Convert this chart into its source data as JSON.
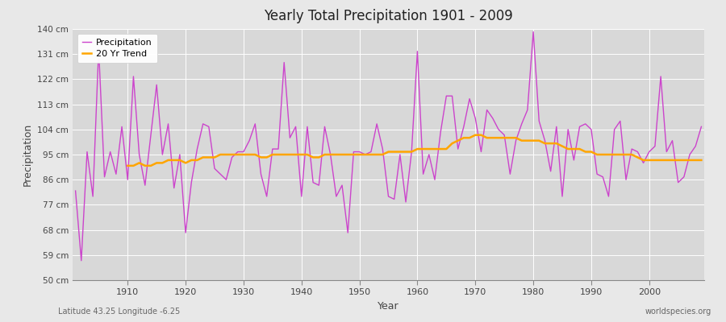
{
  "title": "Yearly Total Precipitation 1901 - 2009",
  "xlabel": "Year",
  "ylabel": "Precipitation",
  "lat_lon_label": "Latitude 43.25 Longitude -6.25",
  "watermark": "worldspecies.org",
  "precipitation_color": "#CC44CC",
  "trend_color": "#FFA500",
  "fig_bg_color": "#E8E8E8",
  "plot_bg_color": "#D8D8D8",
  "grid_color": "#FFFFFF",
  "ylim": [
    50,
    140
  ],
  "yticks": [
    50,
    59,
    68,
    77,
    86,
    95,
    104,
    113,
    122,
    131,
    140
  ],
  "ytick_labels": [
    "50 cm",
    "59 cm",
    "68 cm",
    "77 cm",
    "86 cm",
    "95 cm",
    "104 cm",
    "113 cm",
    "122 cm",
    "131 cm",
    "140 cm"
  ],
  "years": [
    1901,
    1902,
    1903,
    1904,
    1905,
    1906,
    1907,
    1908,
    1909,
    1910,
    1911,
    1912,
    1913,
    1914,
    1915,
    1916,
    1917,
    1918,
    1919,
    1920,
    1921,
    1922,
    1923,
    1924,
    1925,
    1926,
    1927,
    1928,
    1929,
    1930,
    1931,
    1932,
    1933,
    1934,
    1935,
    1936,
    1937,
    1938,
    1939,
    1940,
    1941,
    1942,
    1943,
    1944,
    1945,
    1946,
    1947,
    1948,
    1949,
    1950,
    1951,
    1952,
    1953,
    1954,
    1955,
    1956,
    1957,
    1958,
    1959,
    1960,
    1961,
    1962,
    1963,
    1964,
    1965,
    1966,
    1967,
    1968,
    1969,
    1970,
    1971,
    1972,
    1973,
    1974,
    1975,
    1976,
    1977,
    1978,
    1979,
    1980,
    1981,
    1982,
    1983,
    1984,
    1985,
    1986,
    1987,
    1988,
    1989,
    1990,
    1991,
    1992,
    1993,
    1994,
    1995,
    1996,
    1997,
    1998,
    1999,
    2000,
    2001,
    2002,
    2003,
    2004,
    2005,
    2006,
    2007,
    2008,
    2009
  ],
  "precipitation": [
    82,
    57,
    96,
    80,
    133,
    87,
    96,
    88,
    105,
    86,
    123,
    95,
    84,
    102,
    120,
    95,
    106,
    83,
    95,
    67,
    85,
    97,
    106,
    105,
    90,
    88,
    86,
    94,
    96,
    96,
    100,
    106,
    88,
    80,
    97,
    97,
    128,
    101,
    105,
    80,
    105,
    85,
    84,
    105,
    95,
    80,
    84,
    67,
    96,
    96,
    95,
    96,
    106,
    97,
    80,
    79,
    95,
    78,
    96,
    132,
    88,
    95,
    86,
    103,
    116,
    116,
    97,
    105,
    115,
    108,
    96,
    111,
    108,
    104,
    102,
    88,
    100,
    106,
    111,
    139,
    107,
    100,
    89,
    105,
    80,
    104,
    93,
    105,
    106,
    104,
    88,
    87,
    80,
    104,
    107,
    86,
    97,
    96,
    92,
    96,
    98,
    123,
    96,
    100,
    85,
    87,
    95,
    98,
    105
  ],
  "trend": [
    null,
    null,
    null,
    null,
    null,
    null,
    null,
    null,
    null,
    91,
    91,
    92,
    91,
    91,
    92,
    92,
    93,
    93,
    93,
    92,
    93,
    93,
    94,
    94,
    94,
    95,
    95,
    95,
    95,
    95,
    95,
    95,
    94,
    94,
    95,
    95,
    95,
    95,
    95,
    95,
    95,
    94,
    94,
    95,
    95,
    95,
    95,
    95,
    95,
    95,
    95,
    95,
    95,
    95,
    96,
    96,
    96,
    96,
    96,
    97,
    97,
    97,
    97,
    97,
    97,
    99,
    100,
    101,
    101,
    102,
    102,
    101,
    101,
    101,
    101,
    101,
    101,
    100,
    100,
    100,
    100,
    99,
    99,
    99,
    98,
    97,
    97,
    97,
    96,
    96,
    95,
    95,
    95,
    95,
    95,
    95,
    95,
    94,
    93,
    93,
    93,
    93,
    93,
    93,
    93,
    93,
    93,
    93,
    93
  ]
}
